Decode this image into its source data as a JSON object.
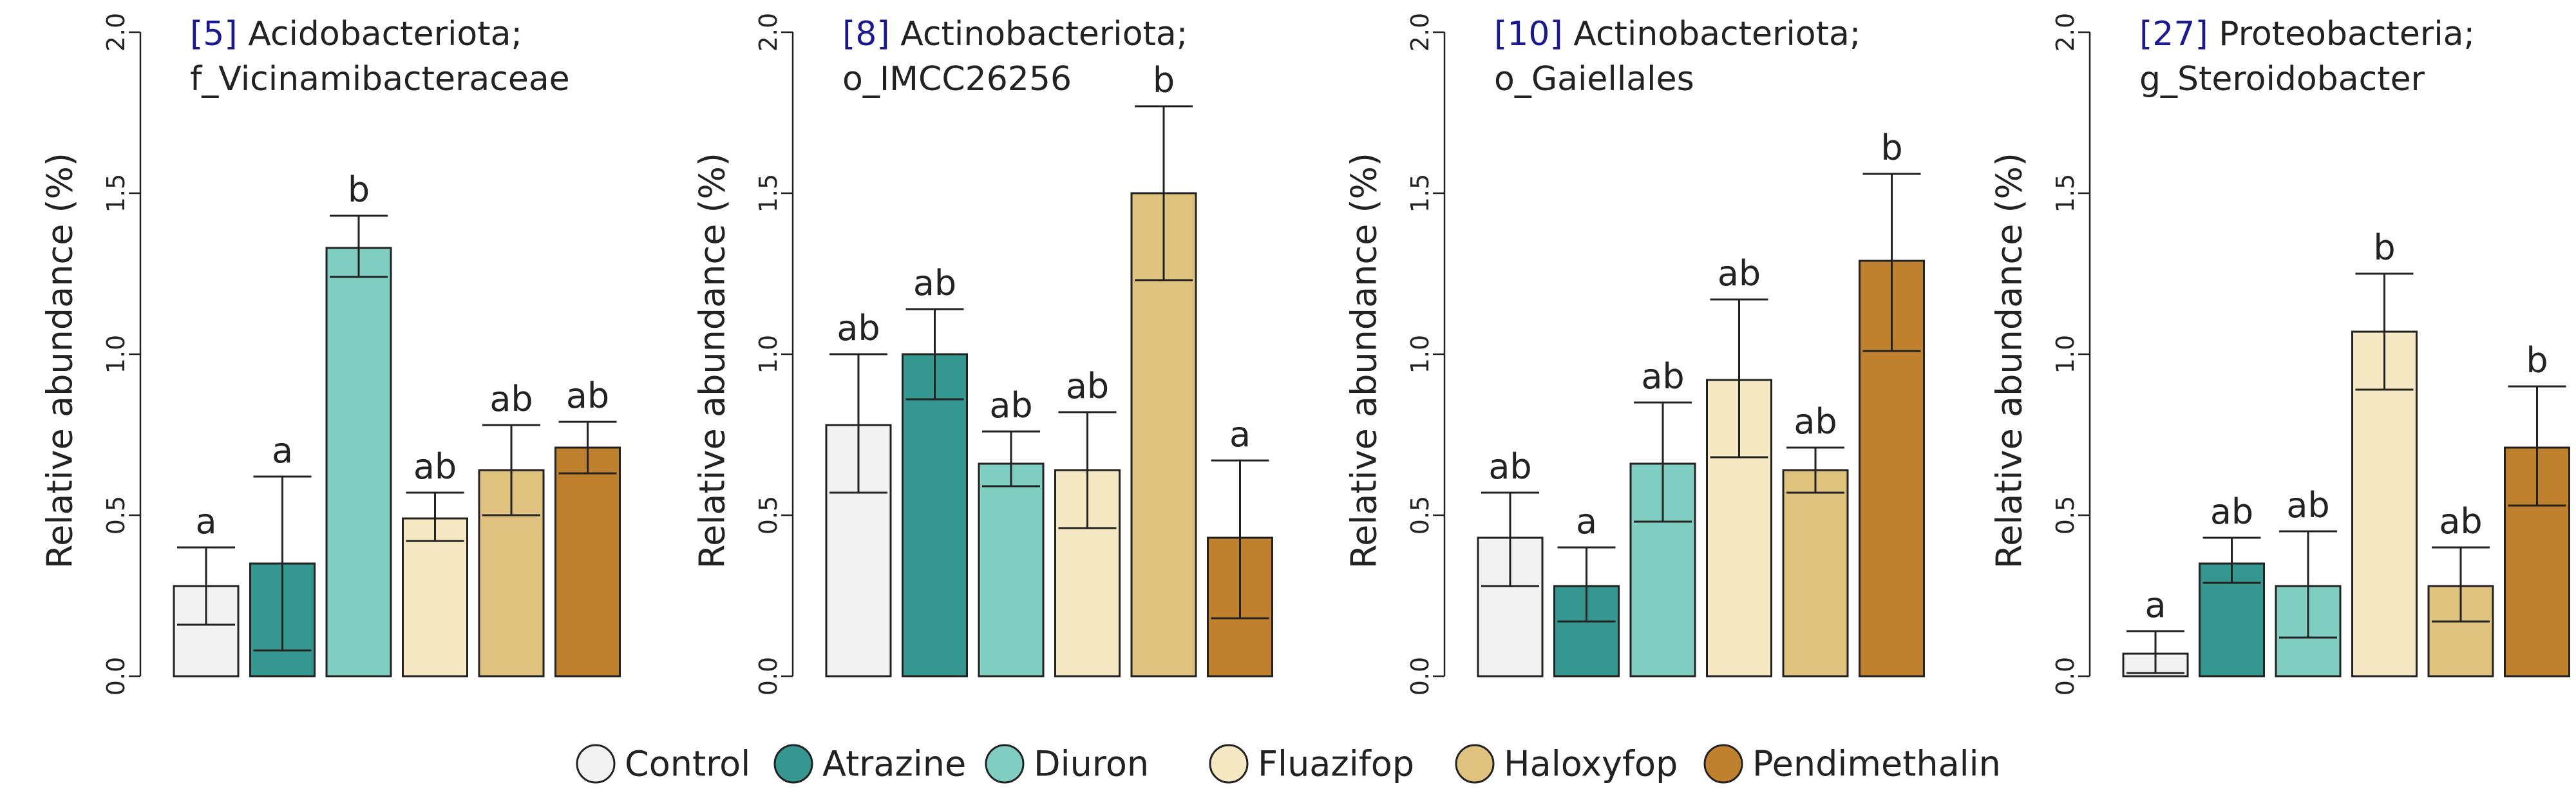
{
  "chart_data": [
    {
      "type": "bar",
      "title_id": "[5]",
      "title_line1": "Acidobacteriota;",
      "title_line2": "f_Vicinamibacteraceae",
      "ylabel": "Relative abundance (%)",
      "ylim": [
        0,
        2.0
      ],
      "yticks": [
        "0.0",
        "0.5",
        "1.0",
        "1.5",
        "2.0"
      ],
      "categories": [
        "Control",
        "Atrazine",
        "Diuron",
        "Fluazifop",
        "Haloxyfop",
        "Pendimethalin"
      ],
      "values": [
        0.28,
        0.35,
        1.33,
        0.49,
        0.64,
        0.71
      ],
      "err_low": [
        0.16,
        0.08,
        1.24,
        0.42,
        0.5,
        0.63
      ],
      "err_high": [
        0.4,
        0.62,
        1.43,
        0.57,
        0.78,
        0.79
      ],
      "letters": [
        "a",
        "a",
        "b",
        "ab",
        "ab",
        "ab"
      ]
    },
    {
      "type": "bar",
      "title_id": "[8]",
      "title_line1": "Actinobacteriota;",
      "title_line2": "o_IMCC26256",
      "ylabel": "Relative abundance (%)",
      "ylim": [
        0,
        2.0
      ],
      "yticks": [
        "0.0",
        "0.5",
        "1.0",
        "1.5",
        "2.0"
      ],
      "categories": [
        "Control",
        "Atrazine",
        "Diuron",
        "Fluazifop",
        "Haloxyfop",
        "Pendimethalin"
      ],
      "values": [
        0.78,
        1.0,
        0.66,
        0.64,
        1.5,
        0.43
      ],
      "err_low": [
        0.57,
        0.86,
        0.59,
        0.46,
        1.23,
        0.18
      ],
      "err_high": [
        1.0,
        1.14,
        0.76,
        0.82,
        1.77,
        0.67
      ],
      "letters": [
        "ab",
        "ab",
        "ab",
        "ab",
        "b",
        "a"
      ]
    },
    {
      "type": "bar",
      "title_id": "[10]",
      "title_line1": "Actinobacteriota;",
      "title_line2": "o_Gaiellales",
      "ylabel": "Relative abundance (%)",
      "ylim": [
        0,
        2.0
      ],
      "yticks": [
        "0.0",
        "0.5",
        "1.0",
        "1.5",
        "2.0"
      ],
      "categories": [
        "Control",
        "Atrazine",
        "Diuron",
        "Fluazifop",
        "Haloxyfop",
        "Pendimethalin"
      ],
      "values": [
        0.43,
        0.28,
        0.66,
        0.92,
        0.64,
        1.29
      ],
      "err_low": [
        0.28,
        0.17,
        0.48,
        0.68,
        0.57,
        1.01
      ],
      "err_high": [
        0.57,
        0.4,
        0.85,
        1.17,
        0.71,
        1.56
      ],
      "letters": [
        "ab",
        "a",
        "ab",
        "ab",
        "ab",
        "b"
      ]
    },
    {
      "type": "bar",
      "title_id": "[27]",
      "title_line1": "Proteobacteria;",
      "title_line2": "g_Steroidobacter",
      "ylabel": "Relative abundance (%)",
      "ylim": [
        0,
        2.0
      ],
      "yticks": [
        "0.0",
        "0.5",
        "1.0",
        "1.5",
        "2.0"
      ],
      "categories": [
        "Control",
        "Atrazine",
        "Diuron",
        "Fluazifop",
        "Haloxyfop",
        "Pendimethalin"
      ],
      "values": [
        0.07,
        0.35,
        0.28,
        1.07,
        0.28,
        0.71
      ],
      "err_low": [
        0.01,
        0.29,
        0.12,
        0.89,
        0.17,
        0.53
      ],
      "err_high": [
        0.14,
        0.43,
        0.45,
        1.25,
        0.4,
        0.9
      ],
      "letters": [
        "a",
        "ab",
        "ab",
        "b",
        "ab",
        "b"
      ]
    }
  ],
  "legend": [
    {
      "label": "Control",
      "color": "#f2f2f2"
    },
    {
      "label": "Atrazine",
      "color": "#35978f"
    },
    {
      "label": "Diuron",
      "color": "#80cdc1"
    },
    {
      "label": "Fluazifop",
      "color": "#f6e8c3"
    },
    {
      "label": "Haloxyfop",
      "color": "#dfc27d"
    },
    {
      "label": "Pendimethalin",
      "color": "#bf812d"
    }
  ],
  "title_id_color": "#1a1a8c"
}
